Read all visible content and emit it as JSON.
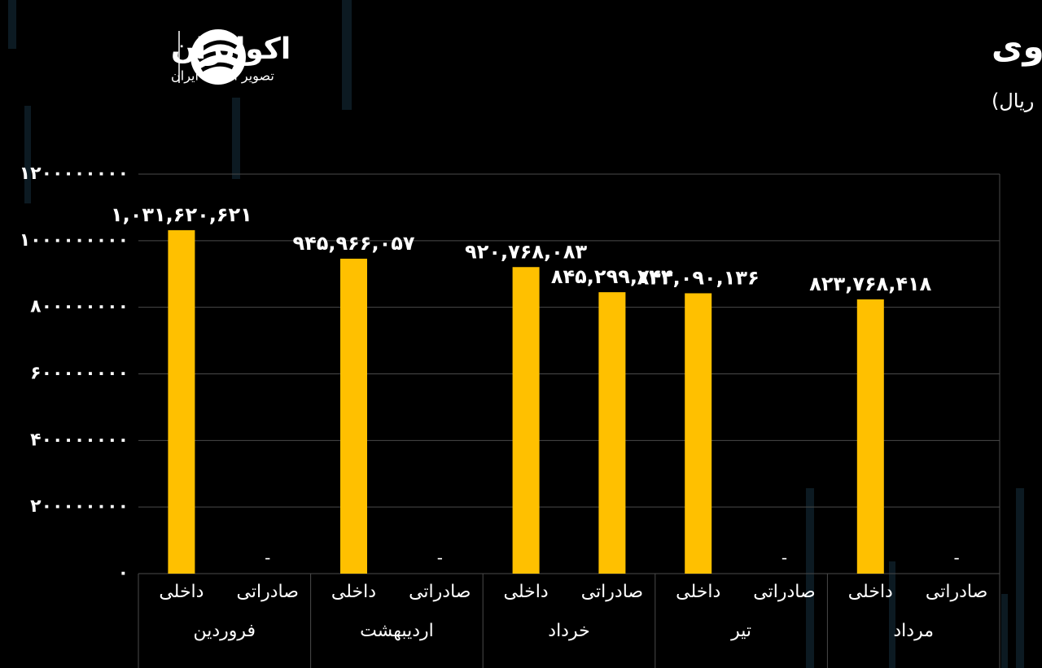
{
  "brand": {
    "name": "اکوایران",
    "tagline": "تصویر اقتصاد ایران"
  },
  "chart_data": {
    "type": "bar",
    "title": "نرخ شمش روی",
    "subtitle": "(واحد: ریال)",
    "categories": [
      "داخلی",
      "صادراتی",
      "داخلی",
      "صادراتی",
      "داخلی",
      "صادراتی",
      "داخلی",
      "صادراتی",
      "داخلی",
      "صادراتی"
    ],
    "groups": [
      "فروردین",
      "اردیبهشت",
      "خرداد",
      "تیر",
      "مرداد"
    ],
    "series": [
      {
        "color": "#ffc000",
        "values": [
          1031620621,
          null,
          945966057,
          null,
          920768083,
          845299744,
          842090136,
          null,
          823768418,
          null
        ],
        "value_labels": [
          "۱,۰۳۱,۶۲۰,۶۲۱",
          "-",
          "۹۴۵,۹۶۶,۰۵۷",
          "-",
          "۹۲۰,۷۶۸,۰۸۳",
          "۸۴۵,۲۹۹,۷۴۴",
          "۸۴۲,۰۹۰,۱۳۶",
          "-",
          "۸۲۳,۷۶۸,۴۱۸",
          "-"
        ]
      }
    ],
    "ylim": [
      0,
      1200000000
    ],
    "yticks": [
      {
        "value": 0,
        "label": "۰"
      },
      {
        "value": 200000000,
        "label": "۲۰۰۰۰۰۰۰۰"
      },
      {
        "value": 400000000,
        "label": "۴۰۰۰۰۰۰۰۰"
      },
      {
        "value": 600000000,
        "label": "۶۰۰۰۰۰۰۰۰"
      },
      {
        "value": 800000000,
        "label": "۸۰۰۰۰۰۰۰۰"
      },
      {
        "value": 1000000000,
        "label": "۱۰۰۰۰۰۰۰۰۰"
      },
      {
        "value": 1200000000,
        "label": "۱۲۰۰۰۰۰۰۰۰"
      }
    ],
    "grid": true
  }
}
